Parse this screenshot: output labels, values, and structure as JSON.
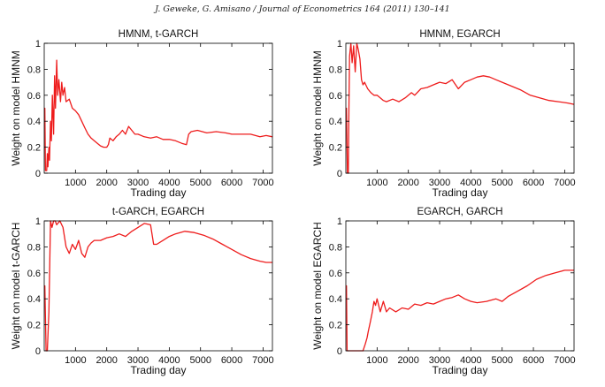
{
  "header": "J. Geweke, G. Amisano / Journal of Econometrics 164 (2011) 130–141",
  "colors": {
    "series": "#ee1c1c",
    "axis": "#000000"
  },
  "chart_data": [
    {
      "type": "line",
      "title": "HMNM, t-GARCH",
      "xlabel": "Trading day",
      "ylabel": "Weight on model HMNM",
      "xlim": [
        0,
        7300
      ],
      "ylim": [
        0,
        1
      ],
      "xticks": [
        "1000",
        "2000",
        "3000",
        "4000",
        "5000",
        "6000",
        "7000"
      ],
      "yticks": [
        "0",
        "0.2",
        "0.4",
        "0.6",
        "0.8",
        "1"
      ],
      "series": [
        {
          "x": [
            0,
            20,
            40,
            80,
            100,
            120,
            150,
            170,
            200,
            230,
            260,
            300,
            330,
            360,
            400,
            430,
            470,
            520,
            560,
            600,
            650,
            700,
            800,
            900,
            1000,
            1100,
            1200,
            1300,
            1400,
            1500,
            1600,
            1700,
            1800,
            1900,
            2000,
            2050,
            2100,
            2200,
            2300,
            2400,
            2500,
            2600,
            2700,
            2800,
            2900,
            3000,
            3200,
            3400,
            3600,
            3800,
            4000,
            4200,
            4400,
            4550,
            4620,
            4700,
            4900,
            5200,
            5500,
            5800,
            6000,
            6300,
            6600,
            6900,
            7100,
            7300
          ],
          "y": [
            0.5,
            0.5,
            0.02,
            0.02,
            0.15,
            0.05,
            0.2,
            0.1,
            0.4,
            0.25,
            0.6,
            0.3,
            0.75,
            0.5,
            0.87,
            0.6,
            0.72,
            0.55,
            0.7,
            0.6,
            0.66,
            0.55,
            0.57,
            0.5,
            0.48,
            0.45,
            0.4,
            0.35,
            0.3,
            0.27,
            0.25,
            0.23,
            0.21,
            0.2,
            0.2,
            0.22,
            0.27,
            0.25,
            0.28,
            0.3,
            0.33,
            0.3,
            0.36,
            0.33,
            0.3,
            0.3,
            0.28,
            0.27,
            0.28,
            0.26,
            0.26,
            0.25,
            0.23,
            0.22,
            0.3,
            0.32,
            0.33,
            0.31,
            0.32,
            0.31,
            0.3,
            0.3,
            0.3,
            0.28,
            0.29,
            0.28
          ]
        }
      ]
    },
    {
      "type": "line",
      "title": "HMNM, EGARCH",
      "xlabel": "Trading day",
      "ylabel": "Weight on model HMNM",
      "xlim": [
        0,
        7300
      ],
      "ylim": [
        0,
        1
      ],
      "xticks": [
        "1000",
        "2000",
        "3000",
        "4000",
        "5000",
        "6000",
        "7000"
      ],
      "yticks": [
        "0",
        "0.2",
        "0.4",
        "0.6",
        "0.8",
        "1"
      ],
      "series": [
        {
          "x": [
            0,
            20,
            50,
            80,
            100,
            120,
            160,
            200,
            250,
            300,
            350,
            400,
            450,
            500,
            550,
            600,
            700,
            800,
            900,
            1000,
            1100,
            1200,
            1300,
            1500,
            1700,
            1900,
            2000,
            2100,
            2200,
            2400,
            2600,
            2800,
            3000,
            3200,
            3400,
            3600,
            3800,
            4000,
            4200,
            4400,
            4600,
            4800,
            5000,
            5300,
            5600,
            5900,
            6200,
            6500,
            6800,
            7100,
            7300
          ],
          "y": [
            0.5,
            0.5,
            0.0,
            0.0,
            0.5,
            0.9,
            1.0,
            0.85,
            0.98,
            0.78,
            1.0,
            0.95,
            0.88,
            0.72,
            0.68,
            0.7,
            0.65,
            0.62,
            0.6,
            0.6,
            0.58,
            0.56,
            0.55,
            0.57,
            0.55,
            0.58,
            0.6,
            0.62,
            0.6,
            0.65,
            0.66,
            0.68,
            0.7,
            0.69,
            0.72,
            0.65,
            0.7,
            0.72,
            0.74,
            0.75,
            0.74,
            0.72,
            0.7,
            0.67,
            0.64,
            0.6,
            0.58,
            0.56,
            0.55,
            0.54,
            0.53
          ]
        }
      ]
    },
    {
      "type": "line",
      "title": "t-GARCH, EGARCH",
      "xlabel": "Trading day",
      "ylabel": "Weight on model t-GARCH",
      "xlim": [
        0,
        7300
      ],
      "ylim": [
        0,
        1
      ],
      "xticks": [
        "1000",
        "2000",
        "3000",
        "4000",
        "5000",
        "6000",
        "7000"
      ],
      "yticks": [
        "0",
        "0.2",
        "0.4",
        "0.6",
        "0.8",
        "1"
      ],
      "series": [
        {
          "x": [
            0,
            20,
            60,
            100,
            150,
            200,
            250,
            300,
            350,
            400,
            500,
            600,
            700,
            800,
            900,
            1000,
            1100,
            1200,
            1300,
            1400,
            1500,
            1600,
            1800,
            2000,
            2200,
            2400,
            2600,
            2800,
            3000,
            3200,
            3400,
            3500,
            3600,
            3800,
            4000,
            4200,
            4500,
            4800,
            5100,
            5400,
            5700,
            6000,
            6300,
            6600,
            6900,
            7100,
            7300
          ],
          "y": [
            0.5,
            0.5,
            0.0,
            0.0,
            0.3,
            1.0,
            0.95,
            1.0,
            1.0,
            0.97,
            1.0,
            0.95,
            0.8,
            0.75,
            0.82,
            0.78,
            0.85,
            0.75,
            0.72,
            0.8,
            0.83,
            0.85,
            0.85,
            0.87,
            0.88,
            0.9,
            0.88,
            0.92,
            0.95,
            0.98,
            0.97,
            0.82,
            0.82,
            0.85,
            0.88,
            0.9,
            0.92,
            0.91,
            0.89,
            0.86,
            0.82,
            0.78,
            0.74,
            0.71,
            0.69,
            0.68,
            0.68
          ]
        }
      ]
    },
    {
      "type": "line",
      "title": "EGARCH, GARCH",
      "xlabel": "Trading day",
      "ylabel": "Weight on model EGARCH",
      "xlim": [
        0,
        7300
      ],
      "ylim": [
        0,
        1
      ],
      "xticks": [
        "1000",
        "2000",
        "3000",
        "4000",
        "5000",
        "6000",
        "7000"
      ],
      "yticks": [
        "0",
        "0.2",
        "0.4",
        "0.6",
        "0.8",
        "1"
      ],
      "series": [
        {
          "x": [
            0,
            20,
            40,
            80,
            200,
            400,
            550,
            620,
            680,
            720,
            780,
            850,
            900,
            950,
            1000,
            1100,
            1200,
            1300,
            1400,
            1600,
            1800,
            2000,
            2200,
            2400,
            2600,
            2800,
            3000,
            3200,
            3400,
            3600,
            3800,
            4000,
            4200,
            4500,
            4800,
            5000,
            5200,
            5500,
            5800,
            6100,
            6400,
            6700,
            7000,
            7300
          ],
          "y": [
            0.5,
            0.5,
            0.0,
            0.0,
            0.0,
            0.0,
            0.0,
            0.05,
            0.1,
            0.15,
            0.22,
            0.3,
            0.38,
            0.35,
            0.4,
            0.3,
            0.38,
            0.3,
            0.33,
            0.3,
            0.33,
            0.32,
            0.36,
            0.35,
            0.37,
            0.36,
            0.38,
            0.4,
            0.41,
            0.43,
            0.4,
            0.38,
            0.37,
            0.38,
            0.4,
            0.38,
            0.42,
            0.46,
            0.5,
            0.55,
            0.58,
            0.6,
            0.62,
            0.62
          ]
        }
      ]
    }
  ]
}
